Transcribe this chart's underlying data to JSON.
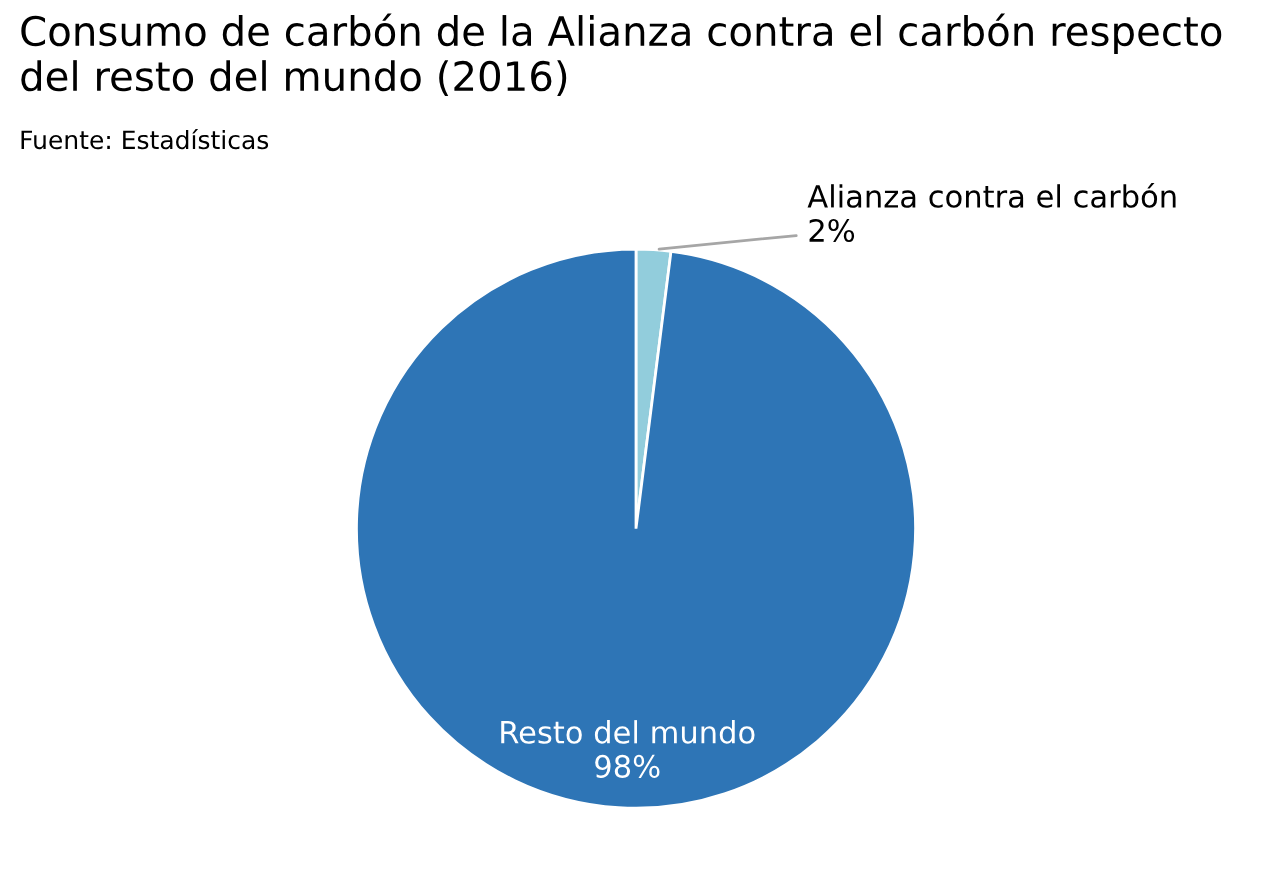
{
  "chart_data": {
    "type": "pie",
    "title": "Consumo de carbón de la Alianza contra el carbón respecto del resto del mundo (2016)",
    "subtitle": "Fuente: Estadísticas",
    "categories": [
      "Alianza contra el carbón",
      "Resto del mundo"
    ],
    "values": [
      2,
      98
    ],
    "value_labels": [
      "2%",
      "98%"
    ],
    "colors": [
      "#92cddc",
      "#2e75b6"
    ]
  }
}
